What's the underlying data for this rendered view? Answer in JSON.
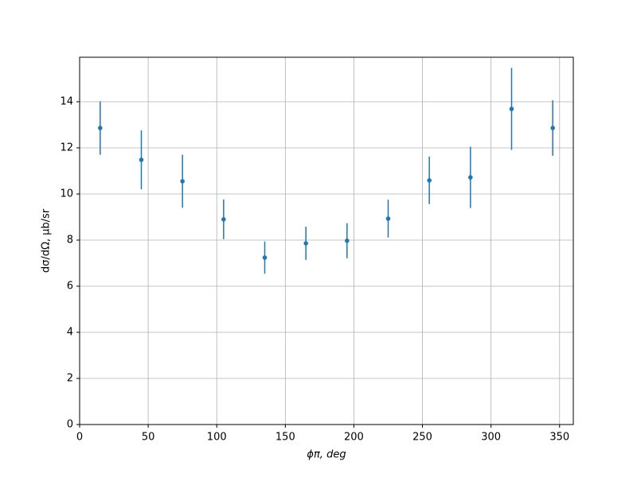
{
  "chart_data": {
    "type": "errorbar",
    "x_label": "ϕπ, deg",
    "y_label": "dσ/dΩ, μb/sr",
    "x": [
      15,
      45,
      75,
      105,
      135,
      165,
      195,
      225,
      255,
      285,
      315,
      345
    ],
    "values": [
      12.86,
      11.48,
      10.55,
      8.9,
      7.24,
      7.86,
      7.97,
      8.93,
      10.59,
      10.72,
      13.69,
      12.86
    ],
    "errors": [
      1.16,
      1.28,
      1.15,
      0.86,
      0.7,
      0.72,
      0.76,
      0.82,
      1.03,
      1.33,
      1.78,
      1.2
    ],
    "color": "#1f77b4",
    "xlim": [
      0,
      360
    ],
    "ylim": [
      0,
      15.93
    ],
    "xticks": [
      0,
      50,
      100,
      150,
      200,
      250,
      300,
      350
    ],
    "yticks": [
      0,
      2,
      4,
      6,
      8,
      10,
      12,
      14
    ],
    "grid": true
  }
}
